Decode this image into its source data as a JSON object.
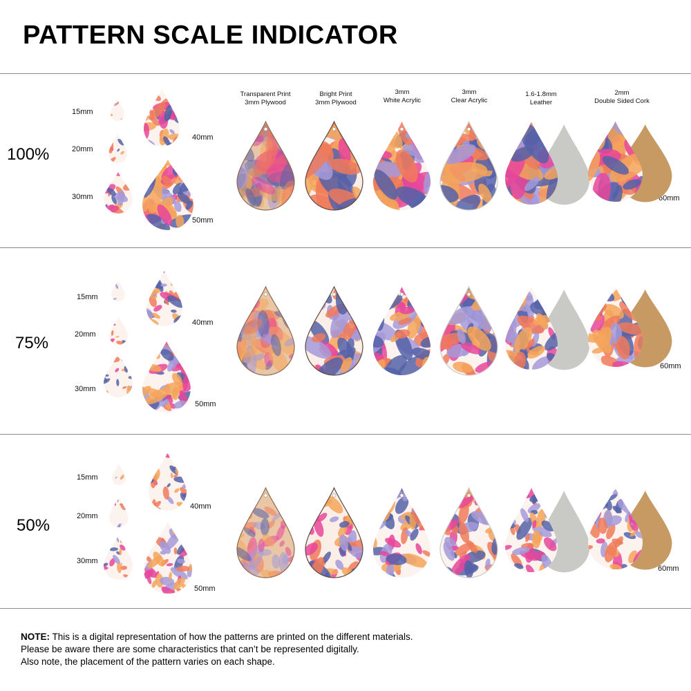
{
  "title": "PATTERN SCALE INDICATOR",
  "materials": [
    {
      "line1": "Transparent Print",
      "line2": "3mm Plywood"
    },
    {
      "line1": "Bright Print",
      "line2": "3mm Plywood"
    },
    {
      "line1": "3mm",
      "line2": "White Acrylic"
    },
    {
      "line1": "3mm",
      "line2": "Clear Acrylic"
    },
    {
      "line1": "1.6-1.8mm",
      "line2": "Leather"
    },
    {
      "line1": "2mm",
      "line2": "Double Sided Cork"
    }
  ],
  "sections": [
    {
      "scale": "100%",
      "sizes": [
        "15mm",
        "20mm",
        "30mm",
        "40mm",
        "50mm"
      ],
      "material_size": "60mm"
    },
    {
      "scale": "75%",
      "sizes": [
        "15mm",
        "20mm",
        "30mm",
        "40mm",
        "50mm"
      ],
      "material_size": "60mm"
    },
    {
      "scale": "50%",
      "sizes": [
        "15mm",
        "20mm",
        "30mm",
        "40mm",
        "50mm"
      ],
      "material_size": "60mm"
    }
  ],
  "note": {
    "label": "NOTE:",
    "line1": " This is a digital representation of how the patterns are printed on the different materials.",
    "line2": "Please be aware there are some characteristics that can’t be represented digitally.",
    "line3": "Also note, the placement of the pattern varies on each shape."
  },
  "colors": {
    "plywood": "#e9c7a6",
    "bright": "#fbeee6",
    "white": "#fdf3ee",
    "leather_back": "#c9c9c6",
    "cork_back": "#c79a64",
    "pink": "#e8479a",
    "lilac": "#a59ad9",
    "coral": "#f07a5a",
    "orange": "#f4a55a",
    "navy": "#5561a8"
  }
}
